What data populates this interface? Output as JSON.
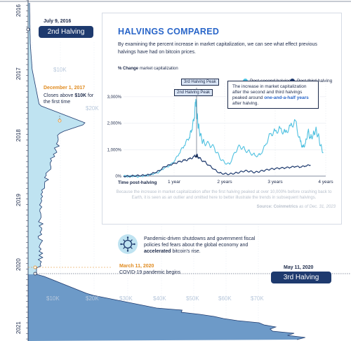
{
  "timeline": {
    "years": [
      "2016",
      "2017",
      "2018",
      "2019",
      "2020",
      "2021"
    ],
    "price_ticks_top": [
      "$10K",
      "$20K"
    ],
    "price_ticks_bottom": [
      "$10K",
      "$20K",
      "$30K",
      "$40K",
      "$50K",
      "$60K",
      "$70K"
    ],
    "events": [
      {
        "date": "July 9, 2016",
        "text": ""
      },
      {
        "date": "December 1, 2017",
        "text": "Closes above $10K for the first time"
      },
      {
        "date": "March 11, 2020",
        "text": "COVID-19 pandemic begins"
      },
      {
        "date": "May 11, 2020",
        "text": ""
      }
    ],
    "halving_labels": [
      "2nd Halving",
      "3rd Halving"
    ],
    "colors": {
      "area_light": "#bfe3f1",
      "area_dark": "#1e3a6e",
      "date_orange": "#e08a1e"
    }
  },
  "panel": {
    "title": "HALVINGS COMPARED",
    "intro": "By examining the percent increase in market capitalization, we can see what effect previous halvings have had on bitcoin prices.",
    "annotation": {
      "pre": "The increase in market capitalization after the second and third halvings peaked around ",
      "highlight": "one-and-a-half years",
      "post": " after halving."
    },
    "peak_labels": [
      "3rd Halving Peak",
      "2nd Halving Peak"
    ],
    "footnote": "Because the increase in market capitalization after the first halving peaked at over 10,000% before crashing back to Earth, it is seen as an outlier and omitted here to better illustrate the trends in subsequent halvings.",
    "source_label": "Source: Coinmetrics",
    "source_date": "as of Dec. 31, 2023"
  },
  "pandemic": {
    "text_pre": "Pandemic-driven shutdowns and government fiscal policies fed fears about the global economy and ",
    "text_bold": "accelerated",
    "text_post": " bitcoin's rise.",
    "icon": "virus-icon"
  },
  "chart_data": {
    "type": "line",
    "ylabel_bold": "% Change",
    "ylabel": "market capitalization",
    "xlabel": "Time post-halving",
    "x_ticks": [
      "1 year",
      "2 years",
      "3 years",
      "4 years"
    ],
    "y_ticks": [
      "0%",
      "1,000%",
      "2,000%",
      "3,000%"
    ],
    "xlim": [
      0,
      4
    ],
    "ylim": [
      0,
      3500
    ],
    "series": [
      {
        "name": "Post-second halving",
        "color": "#4fc1e0",
        "x": [
          0,
          0.1,
          0.2,
          0.3,
          0.4,
          0.5,
          0.6,
          0.7,
          0.8,
          0.9,
          1.0,
          1.1,
          1.2,
          1.3,
          1.35,
          1.4,
          1.43,
          1.45,
          1.47,
          1.5,
          1.55,
          1.6,
          1.7,
          1.8,
          1.9,
          2.0,
          2.1,
          2.2,
          2.3,
          2.4,
          2.5,
          2.6,
          2.7,
          2.8,
          2.9,
          3.0,
          3.1,
          3.2,
          3.3,
          3.4,
          3.5,
          3.55,
          3.6,
          3.65,
          3.7,
          3.75,
          3.8,
          3.85,
          3.9,
          3.95
        ],
        "y": [
          0,
          -10,
          5,
          -20,
          10,
          40,
          90,
          150,
          300,
          380,
          550,
          850,
          1150,
          1450,
          1750,
          2200,
          2900,
          2400,
          2000,
          1700,
          1350,
          1250,
          1200,
          1050,
          700,
          500,
          450,
          900,
          1150,
          1000,
          900,
          780,
          800,
          1150,
          1600,
          1700,
          1800,
          1650,
          1900,
          2100,
          1300,
          1100,
          1250,
          1700,
          1450,
          1550,
          1750,
          1550,
          1150,
          900
        ]
      },
      {
        "name": "Post-third halving",
        "color": "#1e3a6e",
        "x": [
          0,
          0.1,
          0.2,
          0.3,
          0.4,
          0.5,
          0.6,
          0.7,
          0.8,
          0.9,
          1.0,
          1.1,
          1.2,
          1.3,
          1.4,
          1.45,
          1.5,
          1.6,
          1.7,
          1.8,
          1.9,
          2.0,
          2.1,
          2.2,
          2.3,
          2.4,
          2.5,
          2.6,
          2.7,
          2.8,
          2.9,
          3.0,
          3.1,
          3.2,
          3.3,
          3.4,
          3.5,
          3.6,
          3.7
        ],
        "y": [
          0,
          -5,
          10,
          20,
          30,
          50,
          120,
          200,
          350,
          420,
          480,
          550,
          600,
          650,
          750,
          800,
          680,
          550,
          400,
          250,
          120,
          90,
          80,
          110,
          150,
          200,
          180,
          140,
          180,
          220,
          260,
          280,
          300,
          310,
          330,
          360,
          340,
          380,
          420
        ]
      }
    ]
  }
}
